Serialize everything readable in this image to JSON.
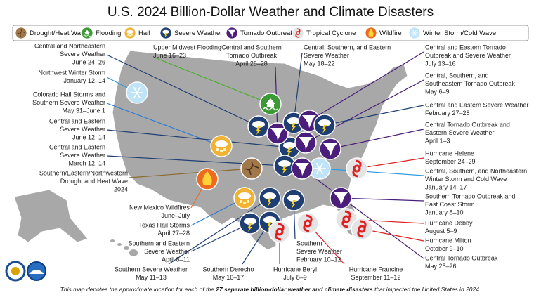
{
  "title": "U.S. 2024 Billion-Dollar Weather and Climate Disasters",
  "legend": {
    "items": [
      {
        "label": "Drought/Heat Wave",
        "icon": "drought",
        "color": "#a0784a",
        "line_color": "#8b6a2e"
      },
      {
        "label": "Flooding",
        "icon": "flooding",
        "color": "#3c9a35",
        "line_color": "#4caf2e"
      },
      {
        "label": "Hail",
        "icon": "hail",
        "color": "#f2b233",
        "line_color": "#2e7bd0"
      },
      {
        "label": "Severe Weather",
        "icon": "severe",
        "color": "#1f3f73",
        "line_color": "#1f3f73"
      },
      {
        "label": "Tornado Outbreak",
        "icon": "tornado",
        "color": "#4a1e7a",
        "line_color": "#4a1e7a"
      },
      {
        "label": "Tropical Cyclone",
        "icon": "tropical",
        "color": "#e4e4e4",
        "line_color": "#e02020"
      },
      {
        "label": "Wildfire",
        "icon": "wildfire",
        "color": "#ee6a1f",
        "line_color": "#ee6a1f"
      },
      {
        "label": "Winter Storm/Cold Wave",
        "icon": "winter",
        "color": "#bfe3f7",
        "line_color": "#2e9be0"
      }
    ]
  },
  "events": [
    {
      "lines": [
        "Central and Northeastern",
        "Severe Weather"
      ],
      "date": "June 24–26",
      "icon": "severe"
    },
    {
      "lines": [
        "Northwest Winter Storm"
      ],
      "date": "January 12–14",
      "icon": "winter"
    },
    {
      "lines": [
        "Colorado Hail Storms and",
        "Southern Severe Weather"
      ],
      "date": "May 31–June 1",
      "icon": "hail"
    },
    {
      "lines": [
        "Central and Eastern",
        "Severe Weather"
      ],
      "date": "June 12–14",
      "icon": "severe"
    },
    {
      "lines": [
        "Central and Eastern",
        "Severe Weather"
      ],
      "date": "March 12–14",
      "icon": "severe"
    },
    {
      "lines": [
        "Southern/Eastern/Northwestern",
        "Drought and Heat Wave"
      ],
      "date": "2024",
      "icon": "drought"
    },
    {
      "lines": [
        "New Mexico Wildfires"
      ],
      "date": "June–July",
      "icon": "wildfire"
    },
    {
      "lines": [
        "Texas Hail Storms"
      ],
      "date": "April 27–28",
      "icon": "hail"
    },
    {
      "lines": [
        "Southern and Eastern",
        "Severe Weather"
      ],
      "date": "April 8–11",
      "icon": "severe"
    },
    {
      "lines": [
        "Southern Severe Weather"
      ],
      "date": "May 11–13",
      "icon": "severe"
    },
    {
      "lines": [
        "Southern Derecho"
      ],
      "date": "May 16–17",
      "icon": "severe"
    },
    {
      "lines": [
        "Hurricane Beryl"
      ],
      "date": "July 8–9",
      "icon": "tropical"
    },
    {
      "lines": [
        "Southern",
        "Severe Weather"
      ],
      "date": "February 10–12",
      "icon": "severe"
    },
    {
      "lines": [
        "Hurricane Francine"
      ],
      "date": "September 11–12",
      "icon": "tropical"
    },
    {
      "lines": [
        "Upper Midwest Flooding"
      ],
      "date": "June 16–23",
      "icon": "flooding"
    },
    {
      "lines": [
        "Central and Southern",
        "Tornado Outbreak"
      ],
      "date": "April 26–28",
      "icon": "tornado"
    },
    {
      "lines": [
        "Central, Southern, and Eastern",
        "Severe Weather"
      ],
      "date": "May 18–22",
      "icon": "severe"
    },
    {
      "lines": [
        "Central and Eastern Tornado",
        "Outbreak and Severe Weather"
      ],
      "date": "July 13–16",
      "icon": "tornado"
    },
    {
      "lines": [
        "Central, Southern, and",
        "Southeastern Tornado Outbreak"
      ],
      "date": "May 6–9",
      "icon": "tornado"
    },
    {
      "lines": [
        "Central and Eastern Severe Weather"
      ],
      "date": "February 27–28",
      "icon": "severe"
    },
    {
      "lines": [
        "Central Tornado Outbreak and",
        "Eastern Severe Weather"
      ],
      "date": "April 1–3",
      "icon": "tornado"
    },
    {
      "lines": [
        "Hurricane Helene"
      ],
      "date": "September 24–29",
      "icon": "tropical"
    },
    {
      "lines": [
        "Central, Southern, and Northeastern",
        "Winter Storm and Cold Wave"
      ],
      "date": "January 14–17",
      "icon": "winter"
    },
    {
      "lines": [
        "Southern Tornado Outbreak and",
        "East Coast Storm"
      ],
      "date": "January 8–10",
      "icon": "tornado"
    },
    {
      "lines": [
        "Hurricane Debby"
      ],
      "date": "August 5–9",
      "icon": "tropical"
    },
    {
      "lines": [
        "Hurricane Milton"
      ],
      "date": "October 9–10",
      "icon": "tropical"
    },
    {
      "lines": [
        "Central Tornado Outbreak"
      ],
      "date": "May 25–26",
      "icon": "tornado"
    }
  ],
  "footer": {
    "parts": [
      "This map denotes the approximate location for each of the ",
      "27 separate billion-dollar weather and climate disasters",
      " that impacted the United States in 2024."
    ]
  }
}
